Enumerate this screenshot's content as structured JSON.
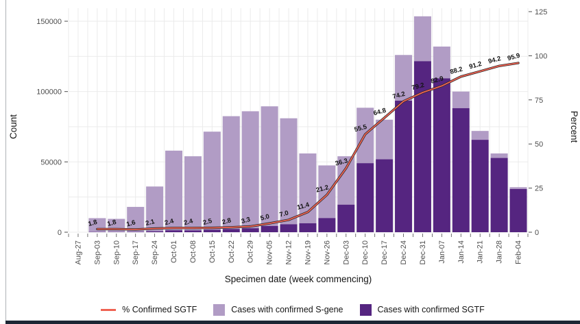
{
  "window": {
    "left_border_color": "#aeb2b6",
    "bottom_bar_color": "#1d2634"
  },
  "chart_data": {
    "type": "bar",
    "subtype": "stacked-bars-with-percent-line",
    "title": "",
    "grid_color": "#ebebeb",
    "tick_color": "#4d4d4d",
    "axes": {
      "left": {
        "title": "Count",
        "ticks": [
          0,
          50000,
          100000,
          150000
        ],
        "max": 150000,
        "grid_step": 25000
      },
      "right": {
        "title": "Percent",
        "ticks": [
          0,
          25,
          50,
          75,
          100,
          125
        ],
        "max": 125
      },
      "x": {
        "title": "Specimen date (week commencing)"
      }
    },
    "categories": [
      "Aug-27",
      "Sep-03",
      "Sep-10",
      "Sep-17",
      "Sep-24",
      "Oct-01",
      "Oct-08",
      "Oct-15",
      "Oct-22",
      "Oct-29",
      "Nov-05",
      "Nov-12",
      "Nov-19",
      "Nov-26",
      "Dec-03",
      "Dec-10",
      "Dec-17",
      "Dec-24",
      "Dec-31",
      "Jan-07",
      "Jan-14",
      "Jan-21",
      "Jan-28",
      "Feb-04"
    ],
    "series": [
      {
        "name": "Cases with confirmed S-gene",
        "color": "#b19cc5",
        "values": [
          null,
          9820,
          9330,
          17710,
          31820,
          56610,
          52700,
          69710,
          80190,
          83160,
          85020,
          75330,
          49620,
          37430,
          34400,
          39400,
          28160,
          32500,
          31900,
          22600,
          11800,
          6300,
          3200,
          1300
        ]
      },
      {
        "name": "Cases with confirmed SGTF",
        "color": "#552580",
        "values": [
          null,
          180,
          170,
          290,
          680,
          1390,
          1300,
          1790,
          2310,
          2840,
          4480,
          5670,
          6380,
          10070,
          19600,
          49100,
          51840,
          93500,
          121600,
          109400,
          88200,
          65700,
          52800,
          30700
        ]
      }
    ],
    "line": {
      "name": "% Confirmed SGTF",
      "color": "#ef6252",
      "outline_color": "#2b2b2b",
      "values": [
        null,
        1.8,
        1.8,
        1.6,
        2.1,
        2.4,
        2.4,
        2.5,
        2.8,
        3.3,
        5.0,
        7.0,
        11.4,
        21.2,
        36.3,
        55.5,
        64.8,
        74.2,
        79.2,
        82.9,
        88.2,
        91.2,
        94.2,
        95.9
      ],
      "labels": [
        null,
        "1.8",
        "1.8",
        "1.6",
        "2.1",
        "2.4",
        "2.4",
        "2.5",
        "2.8",
        "3.3",
        "5.0",
        "7.0",
        "11.4",
        "21.2",
        "36.3",
        "55.5",
        "64.8",
        "74.2",
        "79.2",
        "82.9",
        "88.2",
        "91.2",
        "94.2",
        "95.9"
      ]
    },
    "legend_position": "bottom"
  }
}
